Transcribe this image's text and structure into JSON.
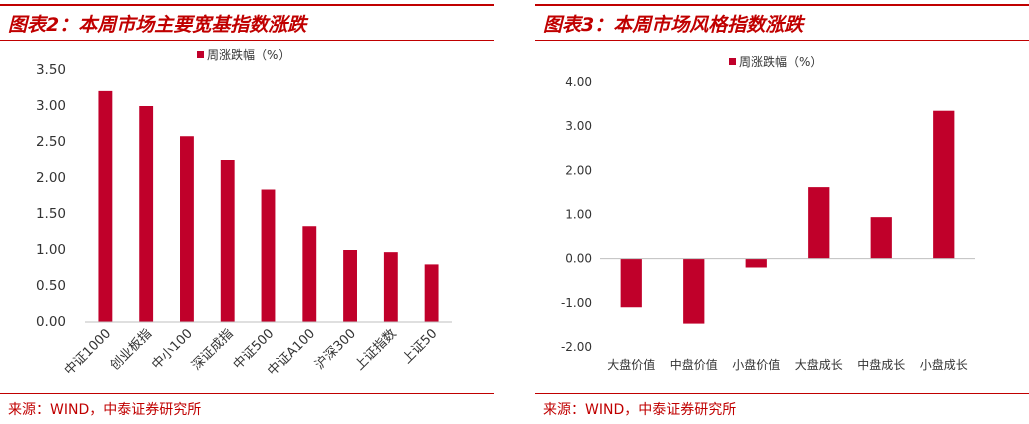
{
  "colors": {
    "accent": "#c00000",
    "bar": "#c0002a",
    "text": "#333333"
  },
  "left": {
    "title": "图表2：本周市场主要宽基指数涨跌",
    "source": "来源：WIND，中泰证券研究所",
    "chart": {
      "type": "bar",
      "legend": "周涨跌幅（%）",
      "categories": [
        "中证1000",
        "创业板指",
        "中小100",
        "深证成指",
        "中证500",
        "中证A100",
        "沪深300",
        "上证指数",
        "上证50"
      ],
      "values": [
        3.21,
        3.0,
        2.58,
        2.25,
        1.84,
        1.33,
        1.0,
        0.97,
        0.8
      ],
      "ylim": [
        0,
        3.5
      ],
      "yticks": [
        0,
        0.5,
        1.0,
        1.5,
        2.0,
        2.5,
        3.0,
        3.5
      ],
      "ytick_labels": [
        "0.00",
        "0.50",
        "1.00",
        "1.50",
        "2.00",
        "2.50",
        "3.00",
        "3.50"
      ]
    }
  },
  "right": {
    "title": "图表3：本周市场风格指数涨跌",
    "source": "来源：WIND，中泰证券研究所",
    "chart": {
      "type": "bar",
      "legend": "周涨跌幅（%）",
      "categories": [
        "大盘价值",
        "中盘价值",
        "小盘价值",
        "大盘成长",
        "中盘成长",
        "小盘成长"
      ],
      "values": [
        -1.1,
        -1.47,
        -0.2,
        1.62,
        0.94,
        3.35
      ],
      "ylim": [
        -2,
        4
      ],
      "yticks": [
        -2,
        -1,
        0,
        1,
        2,
        3,
        4
      ],
      "ytick_labels": [
        "-2.00",
        "-1.00",
        "0.00",
        "1.00",
        "2.00",
        "3.00",
        "4.00"
      ]
    }
  },
  "chart_data": [
    {
      "type": "bar",
      "categories": [
        "中证1000",
        "创业板指",
        "中小100",
        "深证成指",
        "中证500",
        "中证A100",
        "沪深300",
        "上证指数",
        "上证50"
      ],
      "series": [
        {
          "name": "周涨跌幅（%）",
          "values": [
            3.21,
            3.0,
            2.58,
            2.25,
            1.84,
            1.33,
            1.0,
            0.97,
            0.8
          ]
        }
      ],
      "title": "图表2：本周市场主要宽基指数涨跌",
      "ylim": [
        0,
        3.5
      ],
      "legend": "top-center",
      "grid": false
    },
    {
      "type": "bar",
      "categories": [
        "大盘价值",
        "中盘价值",
        "小盘价值",
        "大盘成长",
        "中盘成长",
        "小盘成长"
      ],
      "series": [
        {
          "name": "周涨跌幅（%）",
          "values": [
            -1.1,
            -1.47,
            -0.2,
            1.62,
            0.94,
            3.35
          ]
        }
      ],
      "title": "图表3：本周市场风格指数涨跌",
      "ylim": [
        -2,
        4
      ],
      "legend": "top-center",
      "grid": false
    }
  ]
}
